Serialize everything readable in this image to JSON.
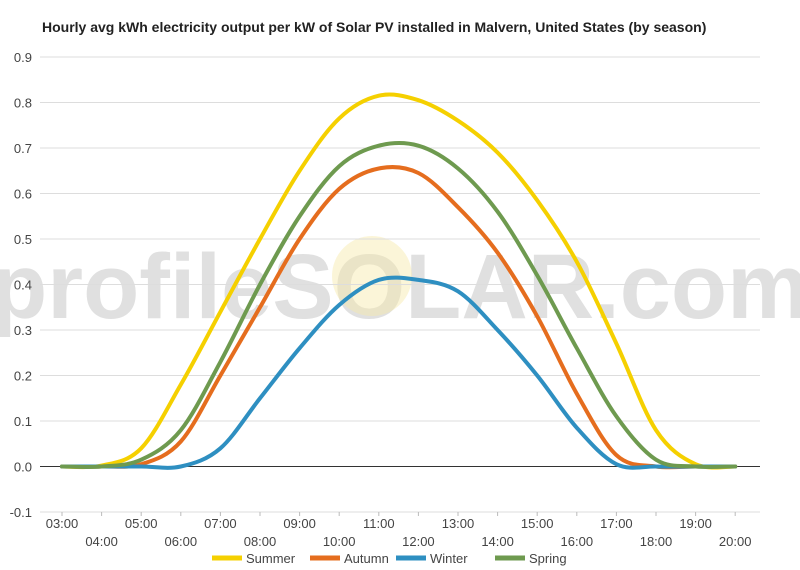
{
  "chart_data": {
    "type": "line",
    "title": "Hourly avg kWh electricity output per kW of Solar PV installed in Malvern, United States (by season)",
    "xlabel": "",
    "ylabel": "",
    "ylim": [
      -0.1,
      0.9
    ],
    "yticks": [
      "0.9",
      "0.8",
      "0.7",
      "0.6",
      "0.5",
      "0.4",
      "0.3",
      "0.2",
      "0.1",
      "0.0",
      "-0.1"
    ],
    "x": [
      "03:00",
      "04:00",
      "05:00",
      "06:00",
      "07:00",
      "08:00",
      "09:00",
      "10:00",
      "11:00",
      "12:00",
      "13:00",
      "14:00",
      "15:00",
      "16:00",
      "17:00",
      "18:00",
      "19:00",
      "20:00"
    ],
    "grid": true,
    "legend_position": "bottom",
    "watermark": "profileSOLAR.com",
    "series": [
      {
        "name": "Summer",
        "color": "#f5d000",
        "values": [
          0.0,
          0.002,
          0.04,
          0.18,
          0.34,
          0.5,
          0.65,
          0.765,
          0.815,
          0.805,
          0.76,
          0.69,
          0.585,
          0.45,
          0.27,
          0.08,
          0.005,
          0.0
        ]
      },
      {
        "name": "Autumn",
        "color": "#e56d1e",
        "values": [
          0.0,
          0.0,
          0.005,
          0.055,
          0.2,
          0.35,
          0.5,
          0.61,
          0.655,
          0.645,
          0.57,
          0.47,
          0.33,
          0.16,
          0.025,
          0.0,
          0.0,
          0.0
        ]
      },
      {
        "name": "Winter",
        "color": "#2e8fc1",
        "values": [
          0.0,
          0.0,
          0.0,
          0.0,
          0.04,
          0.15,
          0.26,
          0.355,
          0.41,
          0.41,
          0.385,
          0.3,
          0.2,
          0.085,
          0.005,
          0.0,
          0.0,
          0.0
        ]
      },
      {
        "name": "Spring",
        "color": "#6e9a4f",
        "values": [
          0.0,
          0.0,
          0.015,
          0.08,
          0.23,
          0.4,
          0.55,
          0.66,
          0.705,
          0.705,
          0.655,
          0.56,
          0.42,
          0.26,
          0.11,
          0.015,
          0.0,
          0.0
        ]
      }
    ]
  }
}
